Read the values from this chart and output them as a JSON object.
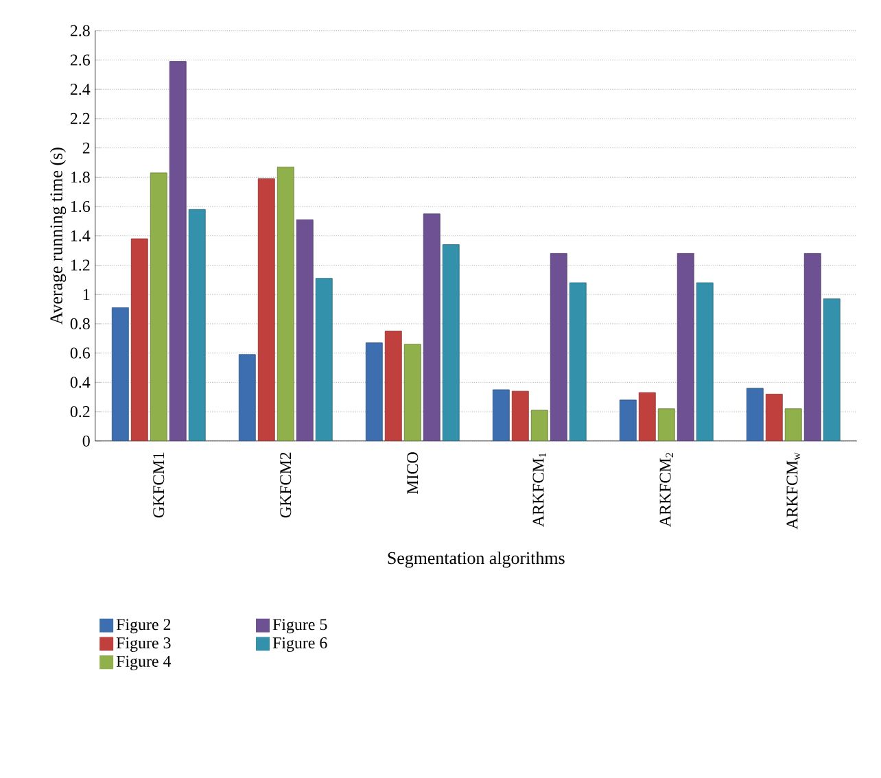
{
  "chart_data": {
    "type": "bar",
    "xlabel": "Segmentation algorithms",
    "ylabel": "Average running time (s)",
    "categories": [
      "GKFCM1",
      "GKFCM2",
      "MICO",
      "ARKFCM$_{1}$",
      "ARKFCM$_{2}$",
      "ARKFCM$_{w}$"
    ],
    "series": [
      {
        "name": "Figure 2",
        "color": "#3d6fb0",
        "values": [
          0.91,
          0.59,
          0.67,
          0.35,
          0.28,
          0.36
        ]
      },
      {
        "name": "Figure 3",
        "color": "#c0403d",
        "values": [
          1.38,
          1.79,
          0.75,
          0.34,
          0.33,
          0.32
        ]
      },
      {
        "name": "Figure 4",
        "color": "#8fb04a",
        "values": [
          1.83,
          1.87,
          0.66,
          0.21,
          0.22,
          0.22
        ]
      },
      {
        "name": "Figure 5",
        "color": "#6d5193",
        "values": [
          2.59,
          1.51,
          1.55,
          1.28,
          1.28,
          1.28
        ]
      },
      {
        "name": "Figure 6",
        "color": "#3391ab",
        "values": [
          1.58,
          1.11,
          1.34,
          1.08,
          1.08,
          0.97
        ]
      }
    ],
    "ylim": [
      0,
      2.8
    ],
    "yticks": [
      0,
      0.2,
      0.4,
      0.6,
      0.8,
      1,
      1.2,
      1.4,
      1.6,
      1.8,
      2,
      2.2,
      2.4,
      2.6,
      2.8
    ],
    "grid": "y",
    "legend": "bottom"
  }
}
